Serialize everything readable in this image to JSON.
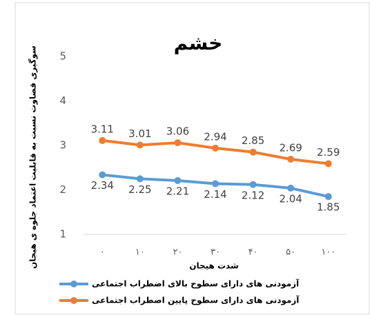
{
  "chart_data": {
    "type": "line",
    "title": "خشم",
    "y_label": "سوگیری قضاوت نسبت به قابلیت اعتماد جلوه ی هیجان",
    "x_label": "شدت هیجان",
    "categories": [
      "۰",
      "۱۰",
      "۲۰",
      "۳۰",
      "۴۰",
      "۵۰",
      "۱۰۰"
    ],
    "series": [
      {
        "name": "آزمودنی های دارای سطوح بالای اضطراب اجتماعی",
        "color": "#5b9bd5",
        "values": [
          2.34,
          2.25,
          2.21,
          2.14,
          2.12,
          2.04,
          1.85
        ]
      },
      {
        "name": "آزمودنی های دارای سطوح پایین اضطراب اجتماعی",
        "color": "#ed7d31",
        "values": [
          3.11,
          3.01,
          3.06,
          2.94,
          2.85,
          2.69,
          2.59
        ]
      }
    ],
    "ylim": [
      1,
      5
    ],
    "yticks": [
      1,
      2,
      3,
      4,
      5
    ],
    "grid": false
  }
}
